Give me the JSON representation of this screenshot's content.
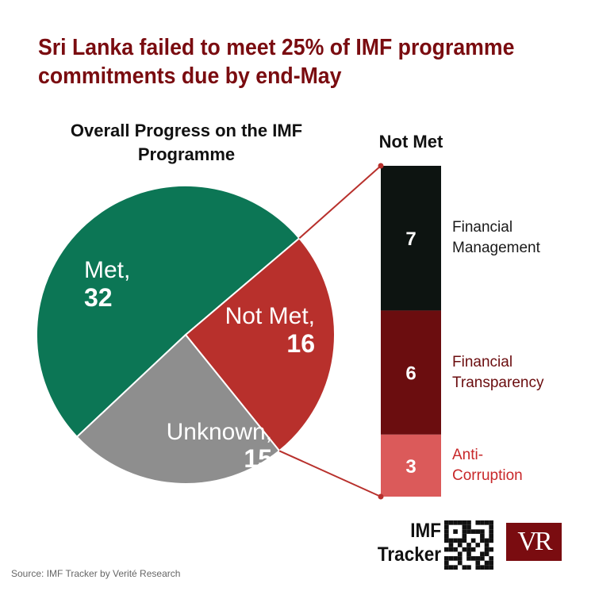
{
  "title": "Sri Lanka failed to meet 25% of IMF programme commitments due by end-May",
  "source": "Source: IMF Tracker by Verité Research",
  "branding": {
    "tracker_line1": "IMF",
    "tracker_line2": "Tracker",
    "logo_text": "VR",
    "qr_icon": "qr-code-icon"
  },
  "colors": {
    "met": "#0c7655",
    "not_met": "#b8302c",
    "unknown": "#8e8e8e",
    "financial_management": "#0d1411",
    "financial_transparency": "#6b0d0f",
    "anti_corruption": "#db5a5a",
    "connector": "#b8302c",
    "title": "#7a0c10"
  },
  "chart_data": [
    {
      "type": "pie",
      "title": "Overall Progress on the IMF Programme",
      "slices": [
        {
          "label": "Met,",
          "value": 32
        },
        {
          "label": "Not Met,",
          "value": 16
        },
        {
          "label": "Unknown,",
          "value": 15
        }
      ]
    },
    {
      "type": "bar",
      "stacked": true,
      "title": "Not Met",
      "categories": [
        "Financial Management",
        "Financial Transparency",
        "Anti-Corruption"
      ],
      "values": [
        7,
        6,
        3
      ],
      "category_lines": [
        [
          "Financial",
          "Management"
        ],
        [
          "Financial",
          "Transparency"
        ],
        [
          "Anti-",
          "Corruption"
        ]
      ]
    }
  ]
}
